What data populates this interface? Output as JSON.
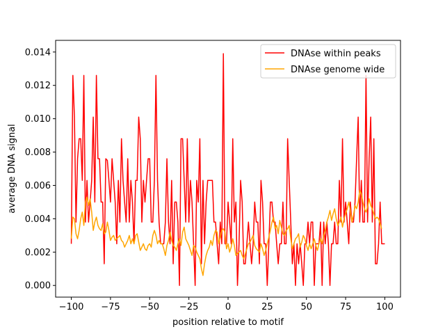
{
  "chart_data": {
    "type": "line",
    "title": "",
    "xlabel": "position relative to motif",
    "ylabel": "average DNA signal",
    "xlim": [
      -110,
      110
    ],
    "ylim": [
      -0.0007,
      0.0147
    ],
    "x_ticks": [
      -100,
      -75,
      -50,
      -25,
      0,
      25,
      50,
      75,
      100
    ],
    "x_tick_labels": [
      "−100",
      "−75",
      "−50",
      "−25",
      "0",
      "25",
      "50",
      "75",
      "100"
    ],
    "y_ticks": [
      0.0,
      0.002,
      0.004,
      0.006,
      0.008,
      0.01,
      0.012,
      0.014
    ],
    "y_tick_labels": [
      "0.000",
      "0.002",
      "0.004",
      "0.006",
      "0.008",
      "0.010",
      "0.012",
      "0.014"
    ],
    "grid": false,
    "legend_position": "top-right",
    "x_start": -100,
    "x_step": 1,
    "series": [
      {
        "name": "DNAse within peaks",
        "color": "#ff0000",
        "values": [
          0.0025,
          0.0126,
          0.0101,
          0.0038,
          0.0076,
          0.0088,
          0.0088,
          0.0063,
          0.0126,
          0.0038,
          0.0063,
          0.0038,
          0.005,
          0.0063,
          0.0101,
          0.005,
          0.0126,
          0.0076,
          0.0076,
          0.005,
          0.005,
          0.0013,
          0.0076,
          0.0075,
          0.0063,
          0.005,
          0.0076,
          0.0063,
          0.005,
          0.0025,
          0.0063,
          0.0038,
          0.0088,
          0.0063,
          0.005,
          0.0038,
          0.0076,
          0.0038,
          0.0063,
          0.005,
          0.0025,
          0.0063,
          0.0063,
          0.0101,
          0.0088,
          0.0038,
          0.0063,
          0.005,
          0.0063,
          0.0076,
          0.0076,
          0.0038,
          0.0038,
          0.0063,
          0.0126,
          0.0063,
          0.0038,
          0.0025,
          0.0025,
          0.0025,
          0.0038,
          0.0076,
          0.0038,
          0.0025,
          0.0063,
          0.0013,
          0.005,
          0.005,
          0.0038,
          0.0,
          0.0088,
          0.0088,
          0.0063,
          0.0038,
          0.0088,
          0.0038,
          0.0063,
          0.005,
          0.0025,
          0.0,
          0.0063,
          0.005,
          0.0088,
          0.0013,
          0.0063,
          0.0025,
          0.005,
          0.0063,
          0.0063,
          0.0063,
          0.0063,
          0.0038,
          0.0038,
          0.0025,
          0.0013,
          0.0038,
          0.0025,
          0.0139,
          0.0025,
          0.0025,
          0.005,
          0.0038,
          0.0025,
          0.0088,
          0.0038,
          0.005,
          0.0,
          0.0025,
          0.0063,
          0.005,
          0.0013,
          0.0013,
          0.0025,
          0.0038,
          0.0025,
          0.0013,
          0.0025,
          0.005,
          0.0038,
          0.0038,
          0.0013,
          0.0063,
          0.005,
          0.0025,
          0.0025,
          0.0,
          0.0025,
          0.005,
          0.005,
          0.0038,
          0.0038,
          0.0025,
          0.0013,
          0.0025,
          0.0025,
          0.005,
          0.0025,
          0.0025,
          0.0088,
          0.0063,
          0.0038,
          0.0013,
          0.0025,
          0.0,
          0.0025,
          0.0013,
          0.0025,
          0.0013,
          0.0,
          0.0025,
          0.0025,
          0.0038,
          0.0025,
          0.0038,
          0.0038,
          0.0,
          0.0025,
          0.0025,
          0.0025,
          0.0038,
          0.0,
          0.0038,
          0.0025,
          0.0038,
          0.0025,
          0.0,
          0.0025,
          0.0025,
          0.0038,
          0.0025,
          0.0025,
          0.0063,
          0.0038,
          0.0088,
          0.0038,
          0.005,
          0.0038,
          0.0025,
          0.005,
          0.0038,
          0.0038,
          0.005,
          0.0076,
          0.0101,
          0.0038,
          0.0063,
          0.0038,
          0.0038,
          0.0126,
          0.0038,
          0.0076,
          0.0101,
          0.0038,
          0.0088,
          0.0013,
          0.0013,
          0.0025,
          0.005,
          0.0025,
          0.0025,
          0.0025
        ]
      },
      {
        "name": "DNAse genome wide",
        "color": "#ffa500",
        "values": [
          0.0028,
          0.0041,
          0.004,
          0.0031,
          0.0028,
          0.0033,
          0.004,
          0.0044,
          0.0036,
          0.005,
          0.0053,
          0.0048,
          0.0052,
          0.0044,
          0.0033,
          0.0038,
          0.0041,
          0.0036,
          0.0034,
          0.0033,
          0.0037,
          0.0031,
          0.0032,
          0.0038,
          0.0033,
          0.0027,
          0.0029,
          0.003,
          0.0027,
          0.0028,
          0.0029,
          0.003,
          0.0027,
          0.0026,
          0.0023,
          0.0025,
          0.0027,
          0.003,
          0.0025,
          0.0028,
          0.0025,
          0.003,
          0.0031,
          0.0026,
          0.0021,
          0.0023,
          0.0025,
          0.0022,
          0.0021,
          0.0024,
          0.0025,
          0.0023,
          0.003,
          0.0033,
          0.003,
          0.0025,
          0.0027,
          0.0025,
          0.0025,
          0.0022,
          0.0018,
          0.0024,
          0.0027,
          0.0032,
          0.0027,
          0.0024,
          0.0023,
          0.0021,
          0.0025,
          0.0028,
          0.0024,
          0.0032,
          0.0035,
          0.0028,
          0.0026,
          0.0024,
          0.0021,
          0.0018,
          0.0024,
          0.0023,
          0.002,
          0.0018,
          0.0016,
          0.001,
          0.0006,
          0.0013,
          0.0018,
          0.0021,
          0.0023,
          0.0027,
          0.0024,
          0.003,
          0.0033,
          0.0032,
          0.0025,
          0.0029,
          0.0033,
          0.0034,
          0.0032,
          0.0022,
          0.0025,
          0.002,
          0.0023,
          0.0028,
          0.0024,
          0.0018,
          0.0019,
          0.002,
          0.0021,
          0.0018,
          0.0016,
          0.0019,
          0.0022,
          0.0025,
          0.0026,
          0.0028,
          0.003,
          0.0024,
          0.0022,
          0.0021,
          0.002,
          0.0025,
          0.0022,
          0.0018,
          0.0021,
          0.0025,
          0.0029,
          0.0033,
          0.0038,
          0.0041,
          0.0034,
          0.0036,
          0.0031,
          0.0039,
          0.0035,
          0.0031,
          0.003,
          0.0033,
          0.0034,
          0.0036,
          0.0028,
          0.0022,
          0.0025,
          0.0028,
          0.0029,
          0.0031,
          0.0023,
          0.0026,
          0.003,
          0.0028,
          0.0024,
          0.0021,
          0.0025,
          0.0022,
          0.0025,
          0.0028,
          0.0024,
          0.0021,
          0.0025,
          0.0028,
          0.0025,
          0.003,
          0.0033,
          0.0038,
          0.0041,
          0.0045,
          0.0039,
          0.0043,
          0.0046,
          0.004,
          0.0036,
          0.0038,
          0.0041,
          0.0035,
          0.004,
          0.0043,
          0.0046,
          0.005,
          0.0045,
          0.0038,
          0.0042,
          0.0048,
          0.0046,
          0.005,
          0.0057,
          0.0055,
          0.005,
          0.0046,
          0.0044,
          0.0047,
          0.0052,
          0.0048,
          0.0046,
          0.0043,
          0.004,
          0.0041,
          0.004,
          0.0037,
          0.0034
        ]
      }
    ]
  }
}
